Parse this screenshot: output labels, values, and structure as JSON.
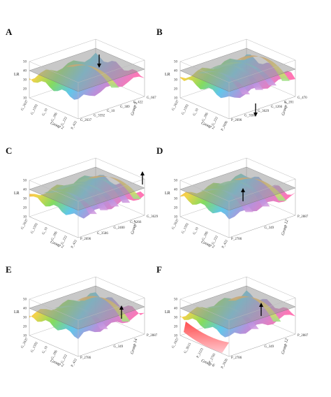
{
  "figure": {
    "panels": [
      {
        "letter": "A"
      },
      {
        "letter": "B"
      },
      {
        "letter": "C"
      },
      {
        "letter": "D"
      },
      {
        "letter": "E"
      },
      {
        "letter": "F"
      }
    ]
  },
  "chart_data": [
    {
      "type": "surface",
      "panel": "A",
      "zlabel": "LR",
      "zticks": [
        "50",
        "40",
        "30",
        "20",
        "10"
      ],
      "xlabel": "Group 2",
      "xticks": [
        "G_2637",
        "G_1592",
        "G_10",
        "G_286",
        "G_222",
        "P_422"
      ],
      "ylabel": "Group 5",
      "yticks": [
        "G_2637",
        "G_3592",
        "G_10",
        "G_389",
        "G_422",
        "G_667"
      ],
      "threshold_plane": 40,
      "marker": "arrow-down",
      "palette": [
        "#ff2a2a",
        "#f4d03f",
        "#7ed957",
        "#58c4e8",
        "#b38bd9",
        "#ef8c4f"
      ]
    },
    {
      "type": "surface",
      "panel": "B",
      "zlabel": "LR",
      "zticks": [
        "50",
        "40",
        "30",
        "20",
        "10"
      ],
      "xlabel": "Group 2",
      "xticks": [
        "G_2637",
        "G_1592",
        "G_10",
        "G_286",
        "G_222",
        "P_2696"
      ],
      "ylabel": "Group 7",
      "yticks": [
        "P_2696",
        "G_3586",
        "G_3629",
        "G_1266",
        "G_201",
        "G_470"
      ],
      "threshold_plane": 40,
      "marker": "arrow-down",
      "palette": [
        "#ff2a2a",
        "#f4d03f",
        "#7ed957",
        "#58c4e8",
        "#b38bd9",
        "#ef8c4f"
      ]
    },
    {
      "type": "surface",
      "panel": "C",
      "zlabel": "LR",
      "zticks": [
        "50",
        "40",
        "30",
        "20",
        "10"
      ],
      "xlabel": "Group 2",
      "xticks": [
        "G_2637",
        "G_1592",
        "G_10",
        "G_286",
        "G_222",
        "P_422"
      ],
      "ylabel": "Group 7",
      "yticks": [
        "P_2696",
        "G_3586",
        "G_2400",
        "G_1266",
        "G_3629"
      ],
      "threshold_plane": 40,
      "marker": "arrow-up",
      "palette": [
        "#ff2a2a",
        "#f4d03f",
        "#7ed957",
        "#58c4e8",
        "#b38bd9",
        "#ef8c4f"
      ]
    },
    {
      "type": "surface",
      "panel": "D",
      "zlabel": "LR",
      "zticks": [
        "50",
        "40",
        "30",
        "20",
        "10"
      ],
      "xlabel": "Group 2",
      "xticks": [
        "G_2637",
        "G_1592",
        "G_10",
        "G_286",
        "G_222",
        "P_422"
      ],
      "ylabel": "Group 12",
      "yticks": [
        "P_2786",
        "G_349",
        "P_2887"
      ],
      "threshold_plane": 40,
      "marker": "arrow-up",
      "palette": [
        "#ff2a2a",
        "#f4d03f",
        "#7ed957",
        "#58c4e8",
        "#b38bd9",
        "#ef8c4f"
      ]
    },
    {
      "type": "surface",
      "panel": "E",
      "zlabel": "LR",
      "zticks": [
        "50",
        "40",
        "30",
        "20",
        "10"
      ],
      "xlabel": "Group 2",
      "xticks": [
        "G_2637",
        "G_1592",
        "G_10",
        "G_286",
        "G_222",
        "P_422"
      ],
      "ylabel": "Group 14",
      "yticks": [
        "P_2786",
        "G_349",
        "P_2887"
      ],
      "threshold_plane": 40,
      "marker": "arrow-up",
      "palette": [
        "#ff2a2a",
        "#f4d03f",
        "#7ed957",
        "#58c4e8",
        "#b38bd9",
        "#ef8c4f"
      ]
    },
    {
      "type": "surface",
      "panel": "F",
      "zlabel": "LR",
      "zticks": [
        "50",
        "40",
        "30",
        "20",
        "10"
      ],
      "xlabel": "Group 6",
      "xticks": [
        "G_1657",
        "G_3615",
        "P_2223",
        "P_2785",
        "P_2626"
      ],
      "ylabel": "Group 12",
      "yticks": [
        "P_2786",
        "G_349",
        "P_2887"
      ],
      "threshold_plane": 40,
      "marker": "arrow-up",
      "palette": [
        "#ff2a2a",
        "#f4d03f",
        "#7ed957",
        "#58c4e8",
        "#b38bd9",
        "#ef8c4f"
      ]
    }
  ]
}
